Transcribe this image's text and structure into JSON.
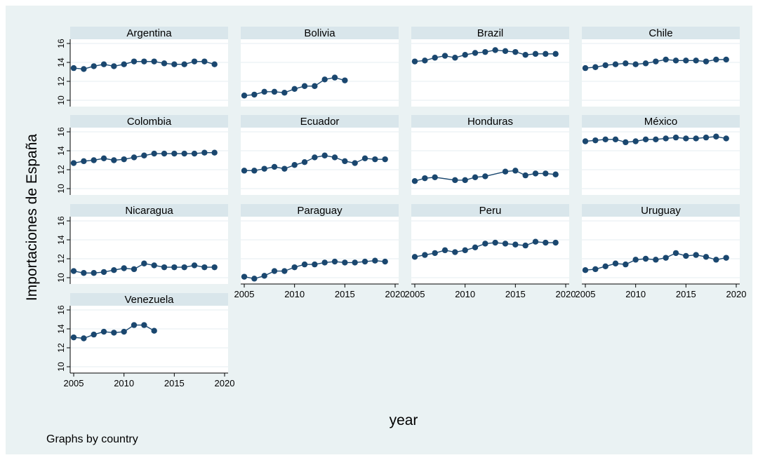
{
  "figure": {
    "ylabel": "Importaciones de España",
    "xlabel": "year",
    "note": "Graphs by country",
    "colors": {
      "background": "#eaf2f3",
      "plot_bg": "#ffffff",
      "strip_bg": "#d9e6eb",
      "series": "#1a476f",
      "grid": "#e4ecf0",
      "axis": "#000000"
    }
  },
  "chart_data": {
    "type": "line",
    "layout": "small-multiples",
    "xlim": [
      2005,
      2020
    ],
    "ylim": [
      10,
      16
    ],
    "x_ticks": [
      2005,
      2010,
      2015,
      2020
    ],
    "y_ticks": [
      10,
      12,
      14,
      16
    ],
    "grid": true,
    "marker": "circle",
    "panels": [
      {
        "title": "Argentina",
        "x": [
          2005,
          2006,
          2007,
          2008,
          2009,
          2010,
          2011,
          2012,
          2013,
          2014,
          2015,
          2016,
          2017,
          2018,
          2019
        ],
        "y": [
          13.4,
          13.3,
          13.6,
          13.8,
          13.6,
          13.8,
          14.1,
          14.1,
          14.1,
          13.9,
          13.8,
          13.8,
          14.1,
          14.1,
          13.8
        ]
      },
      {
        "title": "Bolivia",
        "x": [
          2005,
          2006,
          2007,
          2008,
          2009,
          2010,
          2011,
          2012,
          2013,
          2014,
          2015
        ],
        "y": [
          10.5,
          10.6,
          10.9,
          10.9,
          10.8,
          11.2,
          11.5,
          11.5,
          12.2,
          12.4,
          12.1
        ]
      },
      {
        "title": "Brazil",
        "x": [
          2005,
          2006,
          2007,
          2008,
          2009,
          2010,
          2011,
          2012,
          2013,
          2014,
          2015,
          2016,
          2017,
          2018,
          2019
        ],
        "y": [
          14.1,
          14.2,
          14.5,
          14.7,
          14.5,
          14.8,
          15.0,
          15.1,
          15.3,
          15.2,
          15.1,
          14.8,
          14.9,
          14.9,
          14.9
        ]
      },
      {
        "title": "Chile",
        "x": [
          2005,
          2006,
          2007,
          2008,
          2009,
          2010,
          2011,
          2012,
          2013,
          2014,
          2015,
          2016,
          2017,
          2018,
          2019
        ],
        "y": [
          13.4,
          13.5,
          13.7,
          13.8,
          13.9,
          13.8,
          13.9,
          14.1,
          14.3,
          14.2,
          14.2,
          14.2,
          14.1,
          14.3,
          14.3
        ]
      },
      {
        "title": "Colombia",
        "x": [
          2005,
          2006,
          2007,
          2008,
          2009,
          2010,
          2011,
          2012,
          2013,
          2014,
          2015,
          2016,
          2017,
          2018,
          2019
        ],
        "y": [
          12.7,
          12.9,
          13.0,
          13.2,
          13.0,
          13.1,
          13.3,
          13.5,
          13.7,
          13.7,
          13.7,
          13.7,
          13.7,
          13.8,
          13.8
        ]
      },
      {
        "title": "Ecuador",
        "x": [
          2005,
          2006,
          2007,
          2008,
          2009,
          2010,
          2011,
          2012,
          2013,
          2014,
          2015,
          2016,
          2017,
          2018,
          2019
        ],
        "y": [
          11.9,
          11.9,
          12.1,
          12.3,
          12.1,
          12.5,
          12.8,
          13.3,
          13.5,
          13.3,
          12.9,
          12.7,
          13.2,
          13.1,
          13.1
        ]
      },
      {
        "title": "Honduras",
        "x": [
          2005,
          2006,
          2007,
          2009,
          2010,
          2011,
          2012,
          2014,
          2015,
          2016,
          2017,
          2018,
          2019
        ],
        "y": [
          10.8,
          11.1,
          11.2,
          10.9,
          10.9,
          11.2,
          11.3,
          11.8,
          11.9,
          11.4,
          11.6,
          11.6,
          11.5
        ]
      },
      {
        "title": "México",
        "x": [
          2005,
          2006,
          2007,
          2008,
          2009,
          2010,
          2011,
          2012,
          2013,
          2014,
          2015,
          2016,
          2017,
          2018,
          2019
        ],
        "y": [
          15.0,
          15.1,
          15.2,
          15.2,
          14.9,
          15.0,
          15.2,
          15.2,
          15.3,
          15.4,
          15.3,
          15.3,
          15.4,
          15.5,
          15.3
        ]
      },
      {
        "title": "Nicaragua",
        "x": [
          2005,
          2006,
          2007,
          2008,
          2009,
          2010,
          2011,
          2012,
          2013,
          2014,
          2015,
          2016,
          2017,
          2018,
          2019
        ],
        "y": [
          10.7,
          10.5,
          10.5,
          10.6,
          10.8,
          11.0,
          10.9,
          11.5,
          11.3,
          11.1,
          11.1,
          11.1,
          11.3,
          11.1,
          11.1
        ]
      },
      {
        "title": "Paraguay",
        "x": [
          2005,
          2006,
          2007,
          2008,
          2009,
          2010,
          2011,
          2012,
          2013,
          2014,
          2015,
          2016,
          2017,
          2018,
          2019
        ],
        "y": [
          10.1,
          9.9,
          10.2,
          10.7,
          10.7,
          11.1,
          11.4,
          11.4,
          11.6,
          11.7,
          11.6,
          11.6,
          11.7,
          11.8,
          11.7
        ]
      },
      {
        "title": "Peru",
        "x": [
          2005,
          2006,
          2007,
          2008,
          2009,
          2010,
          2011,
          2012,
          2013,
          2014,
          2015,
          2016,
          2017,
          2018,
          2019
        ],
        "y": [
          12.2,
          12.4,
          12.6,
          12.9,
          12.7,
          12.9,
          13.2,
          13.6,
          13.7,
          13.6,
          13.5,
          13.4,
          13.8,
          13.7,
          13.7
        ]
      },
      {
        "title": "Uruguay",
        "x": [
          2005,
          2006,
          2007,
          2008,
          2009,
          2010,
          2011,
          2012,
          2013,
          2014,
          2015,
          2016,
          2017,
          2018,
          2019
        ],
        "y": [
          10.8,
          10.9,
          11.2,
          11.5,
          11.4,
          11.9,
          12.0,
          11.9,
          12.1,
          12.6,
          12.3,
          12.4,
          12.2,
          11.9,
          12.1
        ]
      },
      {
        "title": "Venezuela",
        "x": [
          2005,
          2006,
          2007,
          2008,
          2009,
          2010,
          2011,
          2012,
          2013
        ],
        "y": [
          13.1,
          13.0,
          13.4,
          13.7,
          13.6,
          13.7,
          14.4,
          14.4,
          13.8
        ]
      }
    ]
  }
}
